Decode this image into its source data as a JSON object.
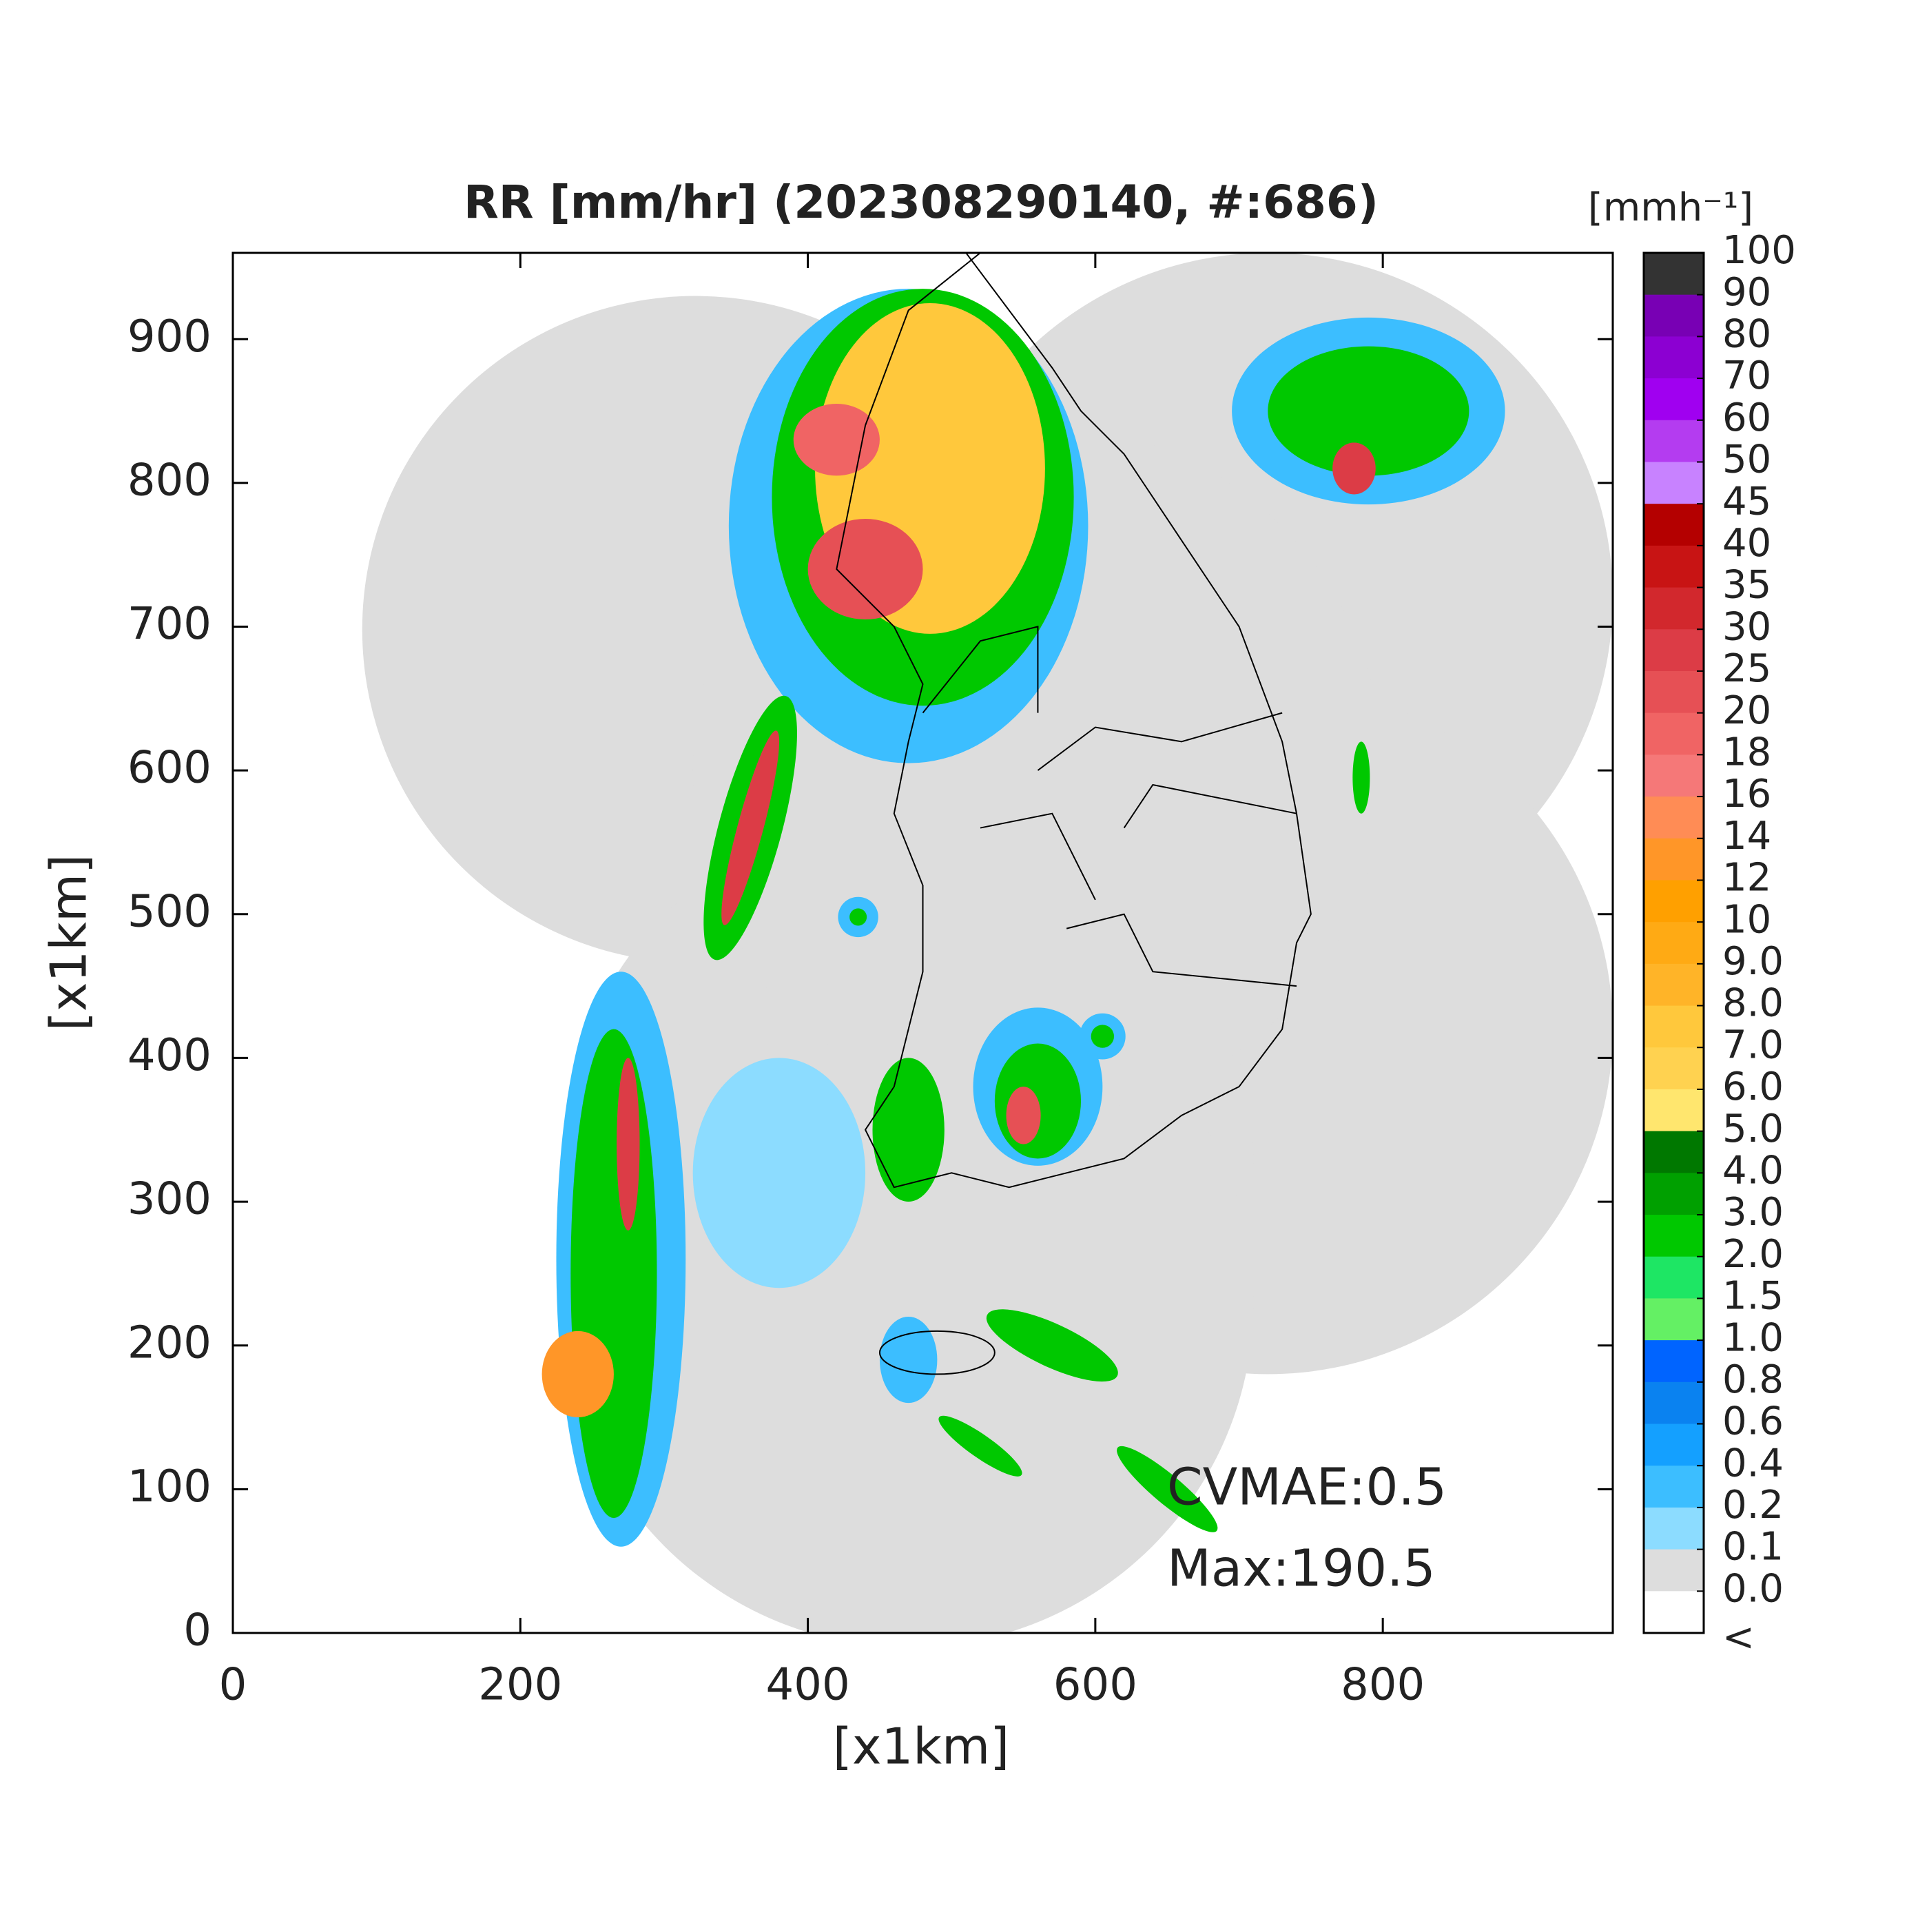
{
  "chart_data": {
    "type": "map",
    "title": "RR [mm/hr] (202308290140, #:686)",
    "xlabel": "[x1km]",
    "ylabel": "[x1km]",
    "xlim": [
      0,
      960
    ],
    "ylim": [
      0,
      960
    ],
    "xticks": [
      0,
      200,
      400,
      600,
      800
    ],
    "yticks": [
      0,
      100,
      200,
      300,
      400,
      500,
      600,
      700,
      800,
      900
    ],
    "annotations": [
      "CVMAE:0.5",
      "Max:190.5"
    ],
    "colorbar": {
      "label": "[mmh⁻¹]",
      "ticks": [
        100,
        90,
        80,
        70,
        60,
        50,
        45,
        40,
        35,
        30,
        25,
        20,
        18,
        16,
        14,
        12,
        10,
        {
          "value": 9,
          "label": "9.0"
        },
        {
          "value": 8,
          "label": "8.0"
        },
        {
          "value": 7,
          "label": "7.0"
        },
        {
          "value": 6,
          "label": "6.0"
        },
        {
          "value": 5,
          "label": "5.0"
        },
        {
          "value": 4,
          "label": "4.0"
        },
        {
          "value": 3,
          "label": "3.0"
        },
        {
          "value": 2,
          "label": "2.0"
        },
        1.5,
        {
          "value": 1,
          "label": "1.0"
        },
        0.8,
        0.6,
        0.4,
        0.2,
        0.1,
        {
          "value": 0,
          "label": "0.0"
        },
        "<"
      ],
      "colors": [
        "#333333",
        "#7800b4",
        "#8c00d2",
        "#a000f0",
        "#b43cf0",
        "#c882ff",
        "#b40000",
        "#c81414",
        "#d2282d",
        "#dc3c46",
        "#e65055",
        "#f06464",
        "#f57878",
        "#ff8c55",
        "#ff9628",
        "#ffa000",
        "#ffaa14",
        "#ffb428",
        "#ffc83c",
        "#ffd250",
        "#ffe66e",
        "#007800",
        "#00a000",
        "#00c800",
        "#1ee664",
        "#64f064",
        "#0064ff",
        "#0a82f0",
        "#14a0ff",
        "#3cbeff",
        "#8cdcff",
        "#dddddd",
        "#ffffff"
      ]
    }
  }
}
